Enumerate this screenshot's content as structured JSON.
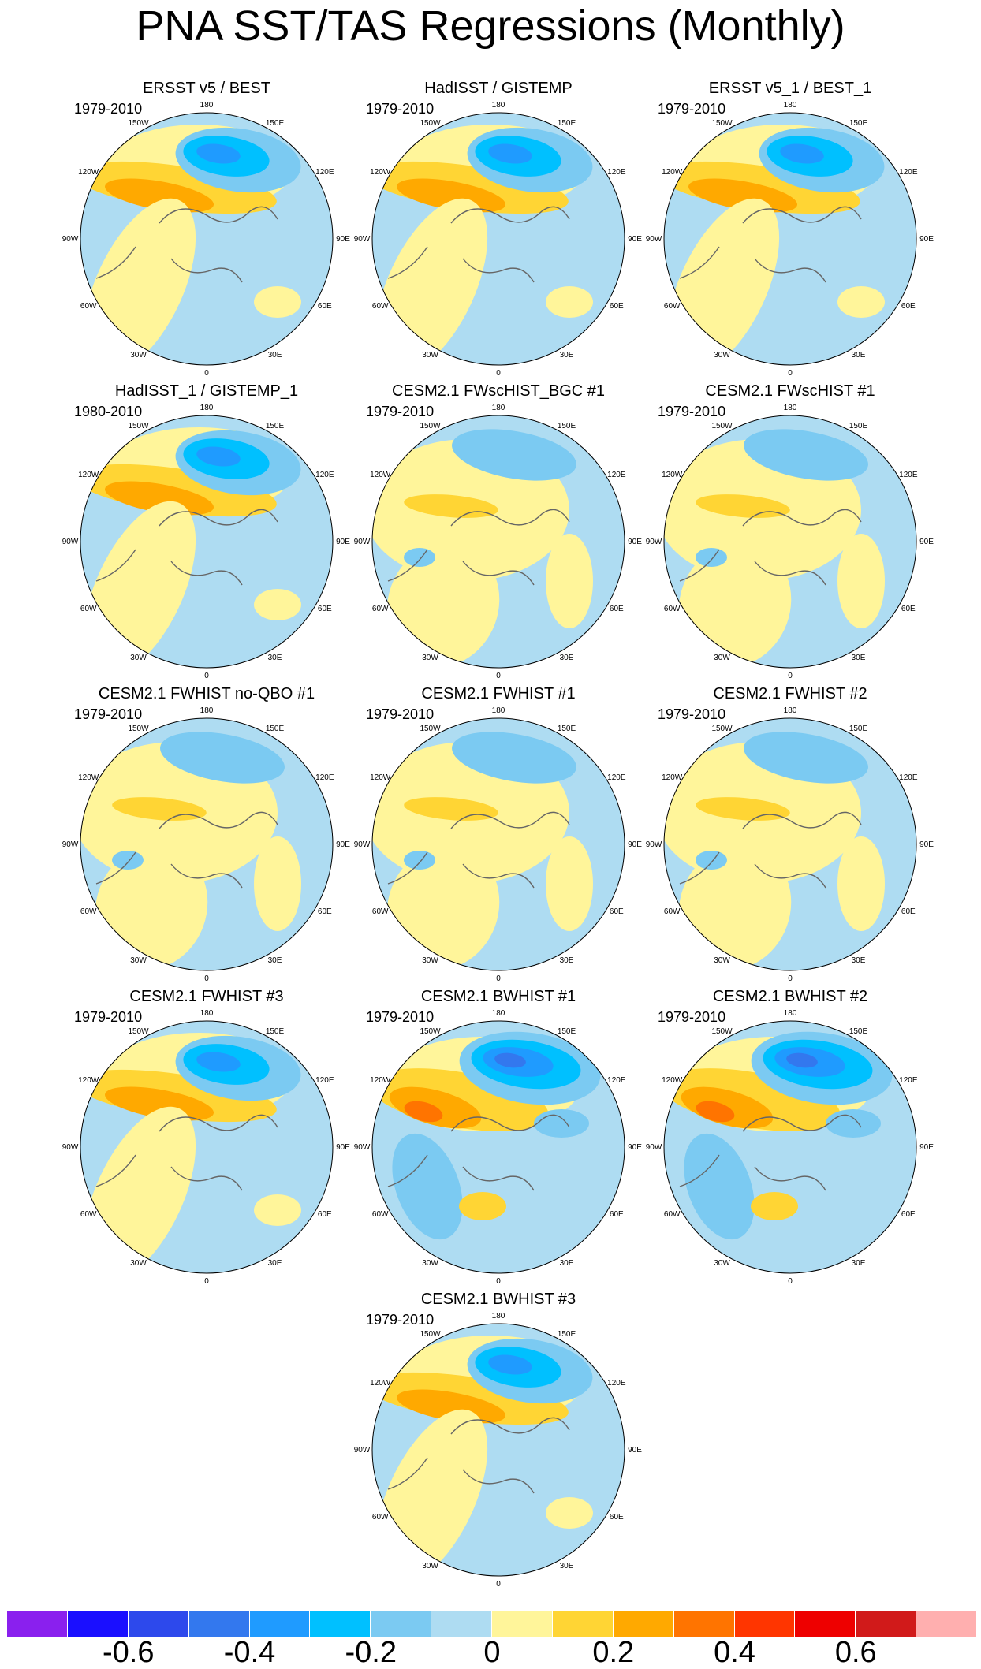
{
  "title": "PNA SST/TAS Regressions (Monthly)",
  "chart_data": {
    "type": "polar stereographic contour map grid",
    "lon_labels": [
      "180",
      "150E",
      "120E",
      "90E",
      "60E",
      "30E",
      "0",
      "30W",
      "60W",
      "90W",
      "120W",
      "150W"
    ],
    "panels": [
      {
        "title": "ERSST v5 / BEST",
        "period": "1979-2010",
        "pattern": "obs"
      },
      {
        "title": "HadISST / GISTEMP",
        "period": "1979-2010",
        "pattern": "obs"
      },
      {
        "title": "ERSST v5_1 / BEST_1",
        "period": "1979-2010",
        "pattern": "obs"
      },
      {
        "title": "HadISST_1 / GISTEMP_1",
        "period": "1980-2010",
        "pattern": "obs"
      },
      {
        "title": "CESM2.1 FWscHIST_BGC #1",
        "period": "1979-2010",
        "pattern": "weak"
      },
      {
        "title": "CESM2.1 FWscHIST #1",
        "period": "1979-2010",
        "pattern": "weak"
      },
      {
        "title": "CESM2.1 FWHIST no-QBO #1",
        "period": "1979-2010",
        "pattern": "weak"
      },
      {
        "title": "CESM2.1 FWHIST #1",
        "period": "1979-2010",
        "pattern": "weak"
      },
      {
        "title": "CESM2.1 FWHIST #2",
        "period": "1979-2010",
        "pattern": "weak"
      },
      {
        "title": "CESM2.1 FWHIST #3",
        "period": "1979-2010",
        "pattern": "obs"
      },
      {
        "title": "CESM2.1 BWHIST #1",
        "period": "1979-2010",
        "pattern": "strong"
      },
      {
        "title": "CESM2.1 BWHIST #2",
        "period": "1979-2010",
        "pattern": "strong"
      },
      {
        "title": "CESM2.1 BWHIST #3",
        "period": "1979-2010",
        "pattern": "obs"
      }
    ],
    "colorbar": {
      "colors": [
        "#8a20ee",
        "#1a0fff",
        "#2d49ec",
        "#3378ee",
        "#1f9bff",
        "#00c0ff",
        "#7bcaf2",
        "#aedcf2",
        "#fff59a",
        "#ffd534",
        "#ffa900",
        "#ff7400",
        "#ff3500",
        "#ee0000",
        "#d11a1a",
        "#ffafaf"
      ],
      "ticks": [
        -0.6,
        -0.4,
        -0.2,
        0,
        0.2,
        0.4,
        0.6
      ],
      "tick_labels": [
        "-0.6",
        "-0.4",
        "-0.2",
        "0",
        "0.2",
        "0.4",
        "0.6"
      ],
      "levels": [
        -0.7,
        -0.6,
        -0.5,
        -0.4,
        -0.3,
        -0.2,
        -0.1,
        0,
        0.1,
        0.2,
        0.3,
        0.4,
        0.5,
        0.6,
        0.7
      ]
    }
  }
}
